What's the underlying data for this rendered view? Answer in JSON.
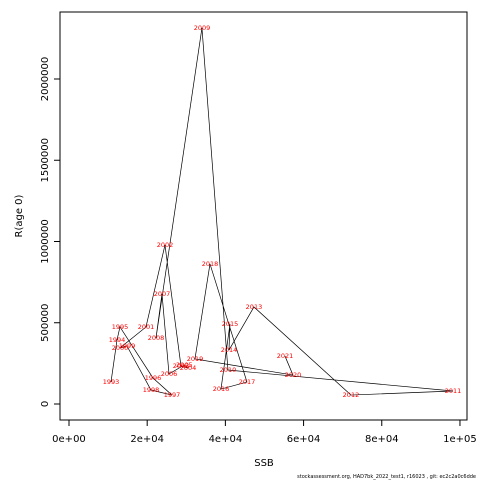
{
  "chart_data": {
    "type": "scatter",
    "xlabel": "SSB",
    "ylabel": "R(age 0)",
    "footnote": "stockassessment.org, HAD7bk_2022_test1, r16023 , git: ec2c2a0c6dde",
    "labels": [
      "1993",
      "1994",
      "1995",
      "1996",
      "1997",
      "1998",
      "1999",
      "2000",
      "2001",
      "2002",
      "2003",
      "2004",
      "2005",
      "2006",
      "2007",
      "2008",
      "2009",
      "2010",
      "2011",
      "2012",
      "2013",
      "2014",
      "2015",
      "2016",
      "2017",
      "2018",
      "2019",
      "2020",
      "2021"
    ],
    "x": [
      10740,
      12280,
      13040,
      21480,
      26340,
      20970,
      14830,
      13040,
      19690,
      24550,
      28640,
      30430,
      29500,
      25580,
      23790,
      22250,
      34010,
      40660,
      98210,
      72120,
      47310,
      40920,
      41180,
      38880,
      45520,
      36060,
      32220,
      57290,
      55240
    ],
    "values": [
      135000,
      394000,
      474000,
      160000,
      55000,
      86000,
      357000,
      345000,
      474000,
      978000,
      234000,
      222000,
      240000,
      185000,
      677000,
      406000,
      2314000,
      209000,
      80000,
      55000,
      597000,
      332000,
      492000,
      92000,
      135000,
      862000,
      277000,
      178000,
      295000
    ],
    "color": "#ff0000",
    "line_color": "#000000",
    "xlim": [
      -2300,
      101800
    ],
    "ylim": [
      -98500,
      2412300
    ],
    "xticks": [
      {
        "value": 0,
        "label": "0e+00"
      },
      {
        "value": 20000,
        "label": "2e+04"
      },
      {
        "value": 40000,
        "label": "4e+04"
      },
      {
        "value": 60000,
        "label": "6e+04"
      },
      {
        "value": 80000,
        "label": "8e+04"
      },
      {
        "value": 100000,
        "label": "1e+05"
      }
    ],
    "yticks": [
      0,
      500000,
      1000000,
      1500000,
      2000000
    ]
  }
}
